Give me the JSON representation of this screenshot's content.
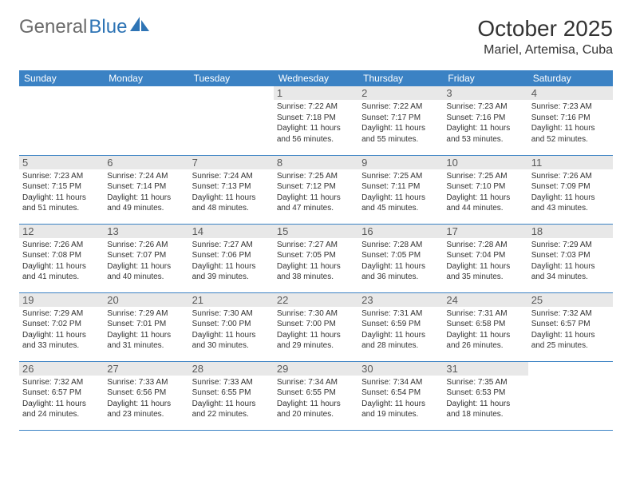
{
  "logo": {
    "text_gray": "General",
    "text_blue": "Blue",
    "icon_color": "#2e74b5"
  },
  "title": "October 2025",
  "location": "Mariel, Artemisa, Cuba",
  "colors": {
    "header_bg": "#3b82c4",
    "header_fg": "#ffffff",
    "daynum_bg": "#e8e8e8",
    "cell_border": "#3b82c4",
    "text": "#333333",
    "logo_gray": "#6b6b6b",
    "logo_blue": "#2e74b5"
  },
  "day_headers": [
    "Sunday",
    "Monday",
    "Tuesday",
    "Wednesday",
    "Thursday",
    "Friday",
    "Saturday"
  ],
  "weeks": [
    [
      {
        "n": "",
        "lines": []
      },
      {
        "n": "",
        "lines": []
      },
      {
        "n": "",
        "lines": []
      },
      {
        "n": "1",
        "lines": [
          "Sunrise: 7:22 AM",
          "Sunset: 7:18 PM",
          "Daylight: 11 hours",
          "and 56 minutes."
        ]
      },
      {
        "n": "2",
        "lines": [
          "Sunrise: 7:22 AM",
          "Sunset: 7:17 PM",
          "Daylight: 11 hours",
          "and 55 minutes."
        ]
      },
      {
        "n": "3",
        "lines": [
          "Sunrise: 7:23 AM",
          "Sunset: 7:16 PM",
          "Daylight: 11 hours",
          "and 53 minutes."
        ]
      },
      {
        "n": "4",
        "lines": [
          "Sunrise: 7:23 AM",
          "Sunset: 7:16 PM",
          "Daylight: 11 hours",
          "and 52 minutes."
        ]
      }
    ],
    [
      {
        "n": "5",
        "lines": [
          "Sunrise: 7:23 AM",
          "Sunset: 7:15 PM",
          "Daylight: 11 hours",
          "and 51 minutes."
        ]
      },
      {
        "n": "6",
        "lines": [
          "Sunrise: 7:24 AM",
          "Sunset: 7:14 PM",
          "Daylight: 11 hours",
          "and 49 minutes."
        ]
      },
      {
        "n": "7",
        "lines": [
          "Sunrise: 7:24 AM",
          "Sunset: 7:13 PM",
          "Daylight: 11 hours",
          "and 48 minutes."
        ]
      },
      {
        "n": "8",
        "lines": [
          "Sunrise: 7:25 AM",
          "Sunset: 7:12 PM",
          "Daylight: 11 hours",
          "and 47 minutes."
        ]
      },
      {
        "n": "9",
        "lines": [
          "Sunrise: 7:25 AM",
          "Sunset: 7:11 PM",
          "Daylight: 11 hours",
          "and 45 minutes."
        ]
      },
      {
        "n": "10",
        "lines": [
          "Sunrise: 7:25 AM",
          "Sunset: 7:10 PM",
          "Daylight: 11 hours",
          "and 44 minutes."
        ]
      },
      {
        "n": "11",
        "lines": [
          "Sunrise: 7:26 AM",
          "Sunset: 7:09 PM",
          "Daylight: 11 hours",
          "and 43 minutes."
        ]
      }
    ],
    [
      {
        "n": "12",
        "lines": [
          "Sunrise: 7:26 AM",
          "Sunset: 7:08 PM",
          "Daylight: 11 hours",
          "and 41 minutes."
        ]
      },
      {
        "n": "13",
        "lines": [
          "Sunrise: 7:26 AM",
          "Sunset: 7:07 PM",
          "Daylight: 11 hours",
          "and 40 minutes."
        ]
      },
      {
        "n": "14",
        "lines": [
          "Sunrise: 7:27 AM",
          "Sunset: 7:06 PM",
          "Daylight: 11 hours",
          "and 39 minutes."
        ]
      },
      {
        "n": "15",
        "lines": [
          "Sunrise: 7:27 AM",
          "Sunset: 7:05 PM",
          "Daylight: 11 hours",
          "and 38 minutes."
        ]
      },
      {
        "n": "16",
        "lines": [
          "Sunrise: 7:28 AM",
          "Sunset: 7:05 PM",
          "Daylight: 11 hours",
          "and 36 minutes."
        ]
      },
      {
        "n": "17",
        "lines": [
          "Sunrise: 7:28 AM",
          "Sunset: 7:04 PM",
          "Daylight: 11 hours",
          "and 35 minutes."
        ]
      },
      {
        "n": "18",
        "lines": [
          "Sunrise: 7:29 AM",
          "Sunset: 7:03 PM",
          "Daylight: 11 hours",
          "and 34 minutes."
        ]
      }
    ],
    [
      {
        "n": "19",
        "lines": [
          "Sunrise: 7:29 AM",
          "Sunset: 7:02 PM",
          "Daylight: 11 hours",
          "and 33 minutes."
        ]
      },
      {
        "n": "20",
        "lines": [
          "Sunrise: 7:29 AM",
          "Sunset: 7:01 PM",
          "Daylight: 11 hours",
          "and 31 minutes."
        ]
      },
      {
        "n": "21",
        "lines": [
          "Sunrise: 7:30 AM",
          "Sunset: 7:00 PM",
          "Daylight: 11 hours",
          "and 30 minutes."
        ]
      },
      {
        "n": "22",
        "lines": [
          "Sunrise: 7:30 AM",
          "Sunset: 7:00 PM",
          "Daylight: 11 hours",
          "and 29 minutes."
        ]
      },
      {
        "n": "23",
        "lines": [
          "Sunrise: 7:31 AM",
          "Sunset: 6:59 PM",
          "Daylight: 11 hours",
          "and 28 minutes."
        ]
      },
      {
        "n": "24",
        "lines": [
          "Sunrise: 7:31 AM",
          "Sunset: 6:58 PM",
          "Daylight: 11 hours",
          "and 26 minutes."
        ]
      },
      {
        "n": "25",
        "lines": [
          "Sunrise: 7:32 AM",
          "Sunset: 6:57 PM",
          "Daylight: 11 hours",
          "and 25 minutes."
        ]
      }
    ],
    [
      {
        "n": "26",
        "lines": [
          "Sunrise: 7:32 AM",
          "Sunset: 6:57 PM",
          "Daylight: 11 hours",
          "and 24 minutes."
        ]
      },
      {
        "n": "27",
        "lines": [
          "Sunrise: 7:33 AM",
          "Sunset: 6:56 PM",
          "Daylight: 11 hours",
          "and 23 minutes."
        ]
      },
      {
        "n": "28",
        "lines": [
          "Sunrise: 7:33 AM",
          "Sunset: 6:55 PM",
          "Daylight: 11 hours",
          "and 22 minutes."
        ]
      },
      {
        "n": "29",
        "lines": [
          "Sunrise: 7:34 AM",
          "Sunset: 6:55 PM",
          "Daylight: 11 hours",
          "and 20 minutes."
        ]
      },
      {
        "n": "30",
        "lines": [
          "Sunrise: 7:34 AM",
          "Sunset: 6:54 PM",
          "Daylight: 11 hours",
          "and 19 minutes."
        ]
      },
      {
        "n": "31",
        "lines": [
          "Sunrise: 7:35 AM",
          "Sunset: 6:53 PM",
          "Daylight: 11 hours",
          "and 18 minutes."
        ]
      },
      {
        "n": "",
        "lines": []
      }
    ]
  ]
}
